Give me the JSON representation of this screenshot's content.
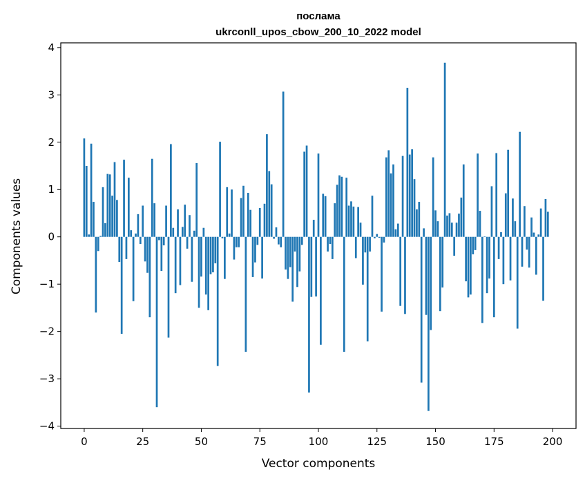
{
  "chart_data": {
    "type": "bar",
    "title_line1": "послама",
    "title_line2": "ukrconll_upos_cbow_200_10_2022 model",
    "xlabel": "Vector components",
    "ylabel": "Components values",
    "xlim": [
      -10,
      210
    ],
    "ylim": [
      -4.05,
      4.1
    ],
    "x_ticks": [
      0,
      25,
      50,
      75,
      100,
      125,
      150,
      175,
      200
    ],
    "x_tick_labels": [
      "0",
      "25",
      "50",
      "75",
      "100",
      "125",
      "150",
      "175",
      "200"
    ],
    "y_ticks": [
      -4,
      -3,
      -2,
      -1,
      0,
      1,
      2,
      3,
      4
    ],
    "y_tick_labels": [
      "−4",
      "−3",
      "−2",
      "−1",
      "0",
      "1",
      "2",
      "3",
      "4"
    ],
    "bar_color": "#1f77b4",
    "grid": false,
    "values": [
      2.08,
      1.5,
      0.05,
      1.97,
      0.74,
      -1.6,
      -0.3,
      0.02,
      1.05,
      0.29,
      1.33,
      1.32,
      0.87,
      1.58,
      0.78,
      -0.53,
      -2.05,
      1.63,
      -0.47,
      1.25,
      0.14,
      -1.36,
      0.07,
      0.48,
      -0.15,
      0.66,
      -0.52,
      -0.76,
      -1.7,
      1.65,
      0.71,
      -3.6,
      -0.07,
      -0.72,
      -0.18,
      0.66,
      -2.13,
      1.96,
      0.19,
      -1.19,
      0.58,
      -1.02,
      0.21,
      0.68,
      -0.25,
      0.46,
      -0.95,
      0.13,
      1.56,
      -1.5,
      -0.84,
      0.19,
      -1.22,
      -1.55,
      -0.79,
      -0.75,
      -0.56,
      -2.73,
      2.01,
      -0.03,
      -0.89,
      1.05,
      0.07,
      1.0,
      -0.48,
      -0.22,
      -0.22,
      0.82,
      1.08,
      -2.43,
      0.93,
      0.57,
      -0.85,
      -0.54,
      -0.17,
      0.61,
      -0.88,
      0.7,
      2.17,
      1.39,
      1.11,
      -0.04,
      0.2,
      -0.16,
      -0.22,
      3.07,
      -0.69,
      -0.89,
      -0.64,
      -1.37,
      -0.31,
      -1.06,
      -0.73,
      -0.17,
      1.8,
      1.93,
      -3.29,
      -1.27,
      0.36,
      -1.26,
      1.76,
      -2.28,
      0.91,
      0.86,
      -0.31,
      -0.15,
      -0.47,
      0.71,
      1.1,
      1.3,
      1.27,
      -2.43,
      1.25,
      0.66,
      0.75,
      0.64,
      -0.45,
      0.63,
      0.3,
      -1.01,
      -0.33,
      -2.21,
      -0.31,
      0.87,
      -0.03,
      0.06,
      -0.02,
      -1.58,
      -0.12,
      1.68,
      1.83,
      1.34,
      1.53,
      0.16,
      0.28,
      -1.46,
      1.71,
      -1.63,
      3.15,
      1.74,
      1.85,
      1.22,
      0.58,
      0.74,
      -3.08,
      0.18,
      -1.65,
      -3.68,
      -1.97,
      1.68,
      0.56,
      0.33,
      -1.57,
      -1.07,
      3.68,
      0.45,
      0.5,
      0.3,
      -0.4,
      0.3,
      0.49,
      0.83,
      1.53,
      -0.94,
      -1.28,
      -1.22,
      -0.37,
      -0.28,
      1.76,
      0.55,
      -1.82,
      0.01,
      -1.19,
      -0.88,
      1.07,
      -1.7,
      1.77,
      -0.47,
      0.1,
      -1.0,
      0.92,
      1.84,
      -0.92,
      0.81,
      0.33,
      -1.94,
      2.22,
      -0.63,
      0.65,
      -0.27,
      -0.65,
      0.41,
      0.09,
      -0.8,
      0.05,
      0.6,
      -1.35,
      0.8,
      0.53
    ]
  }
}
